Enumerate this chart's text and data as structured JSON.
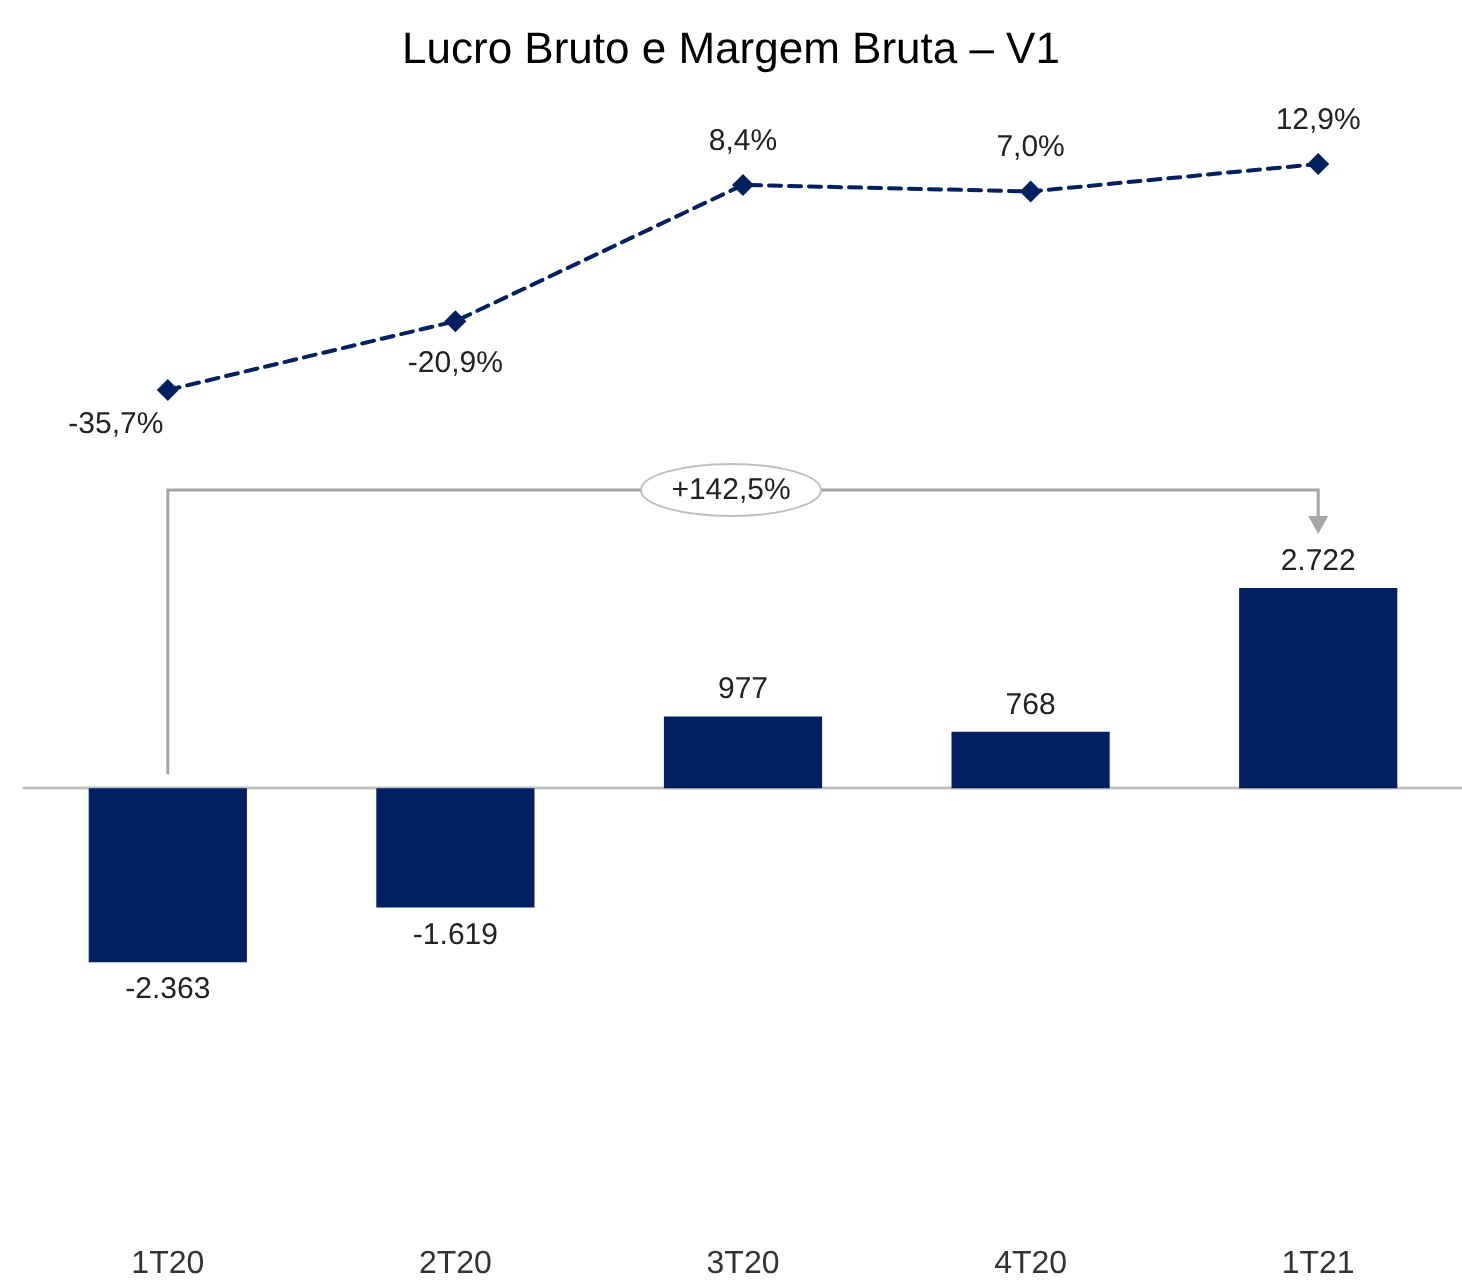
{
  "chart_data": [
    {
      "type": "line",
      "title": "Lucro Bruto e Margem Bruta – V1",
      "categories": [
        null,
        null,
        null,
        null,
        null
      ],
      "series": [
        {
          "color": "#002060",
          "values": [
            -35.7,
            -20.9,
            8.4,
            7.0,
            12.9
          ],
          "value_labels": [
            "-35,7%",
            "-20,9%",
            "8,4%",
            "7,0%",
            "12,9%"
          ]
        }
      ],
      "marker": "diamond",
      "line_style": "dashed"
    },
    {
      "type": "bar",
      "categories": [
        "1T20",
        "2T20",
        "3T20",
        "4T20",
        "1T21"
      ],
      "tick_labels": "x",
      "series": [
        {
          "color": "#002060",
          "values": [
            -2363,
            -1619,
            977,
            768,
            2722
          ],
          "value_labels": [
            "-2.363",
            "-1.619",
            "977",
            "768",
            "2.722"
          ]
        }
      ],
      "annotations": [
        "+142,5%"
      ],
      "grid": false
    }
  ]
}
